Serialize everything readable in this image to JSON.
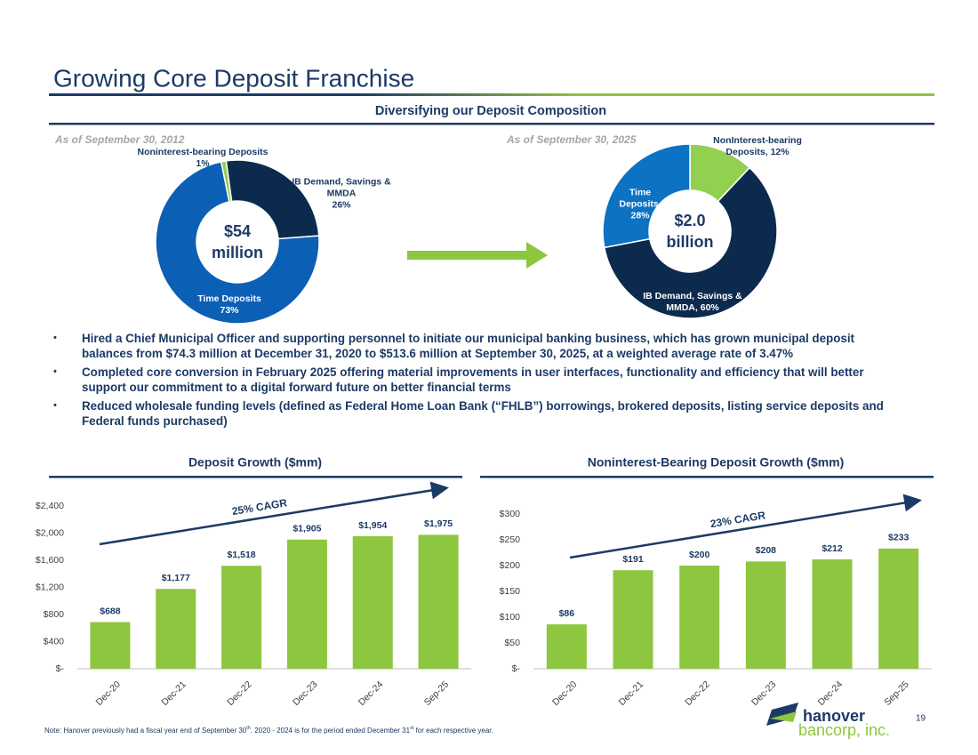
{
  "slide": {
    "title": "Growing Core Deposit Franchise",
    "section_title": "Diversifying our Deposit Composition",
    "bullets": [
      "Hired a Chief Municipal Officer and supporting personnel to initiate our municipal banking business, which has grown municipal deposit balances from $74.3 million at December 31, 2020 to $513.6 million at September 30, 2025, at a weighted average rate of 3.47%",
      "Completed core conversion in February 2025 offering material improvements in user interfaces, functionality and efficiency that will better support our commitment to a digital forward future on better financial terms",
      "Reduced wholesale funding levels (defined as Federal Home Loan Bank (“FHLB”) borrowings, brokered deposits, listing service deposits and Federal funds purchased)"
    ],
    "note": [
      "Note: Hanover previously had a fiscal year end of September 30",
      "th",
      ". 2020 - 2024 is for the period ended December 31",
      "st",
      " for each respective year."
    ],
    "page_number": "19",
    "logo": [
      "hanover",
      "bancorp, inc."
    ]
  },
  "chart_data": [
    {
      "type": "donut",
      "title": "As of September 30, 2012",
      "center_label": [
        "$54",
        "million"
      ],
      "categories": [
        "Noninterest-bearing Deposits",
        "IB Demand, Savings & MMDA",
        "Time Deposits"
      ],
      "values": [
        1,
        26,
        73
      ],
      "value_labels": [
        "1%",
        "26%",
        "73%"
      ],
      "colors": [
        "#92d050",
        "#0c2a4e",
        "#0b5fb5"
      ]
    },
    {
      "type": "donut",
      "title": "As of September 30, 2025",
      "center_label": [
        "$2.0",
        "billion"
      ],
      "values": [
        12,
        60,
        28
      ],
      "value_labels": [
        "NonInterest-bearing Deposits, 12%",
        "IB Demand, Savings & MMDA, 60%",
        "Time Deposits, 28%"
      ],
      "colors": [
        "#92d050",
        "#0c2a4e",
        "#0b72c4"
      ]
    },
    {
      "type": "bar",
      "title": "Deposit Growth ($mm)",
      "categories": [
        "Dec-20",
        "Dec-21",
        "Dec-22",
        "Dec-23",
        "Dec-24",
        "Sep-25"
      ],
      "values": [
        688,
        1177,
        1518,
        1905,
        1954,
        1975
      ],
      "value_labels": [
        "$688",
        "$1,177",
        "$1,518",
        "$1,905",
        "$1,954",
        "$1,975"
      ],
      "color": "#8dc63f",
      "ylim": [
        0,
        2400
      ],
      "yticks": [
        {
          "value": 0,
          "label": "$-"
        },
        {
          "value": 400,
          "label": "$400"
        },
        {
          "value": 800,
          "label": "$800"
        },
        {
          "value": 1200,
          "label": "$1,200"
        },
        {
          "value": 1600,
          "label": "$1,600"
        },
        {
          "value": 2000,
          "label": "$2,000"
        },
        {
          "value": 2400,
          "label": "$2,400"
        }
      ],
      "annotation": "25% CAGR"
    },
    {
      "type": "bar",
      "title": "Noninterest-Bearing Deposit Growth ($mm)",
      "categories": [
        "Dec-20",
        "Dec-21",
        "Dec-22",
        "Dec-23",
        "Dec-24",
        "Sep-25"
      ],
      "values": [
        86,
        191,
        200,
        208,
        212,
        233
      ],
      "value_labels": [
        "$86",
        "$191",
        "$200",
        "$208",
        "$212",
        "$233"
      ],
      "color": "#8dc63f",
      "ylim": [
        0,
        300
      ],
      "yticks": [
        {
          "value": 0,
          "label": "$-"
        },
        {
          "value": 50,
          "label": "$50"
        },
        {
          "value": 100,
          "label": "$100"
        },
        {
          "value": 150,
          "label": "$150"
        },
        {
          "value": 200,
          "label": "$200"
        },
        {
          "value": 250,
          "label": "$250"
        },
        {
          "value": 300,
          "label": "$300"
        }
      ],
      "annotation": "23% CAGR"
    }
  ]
}
